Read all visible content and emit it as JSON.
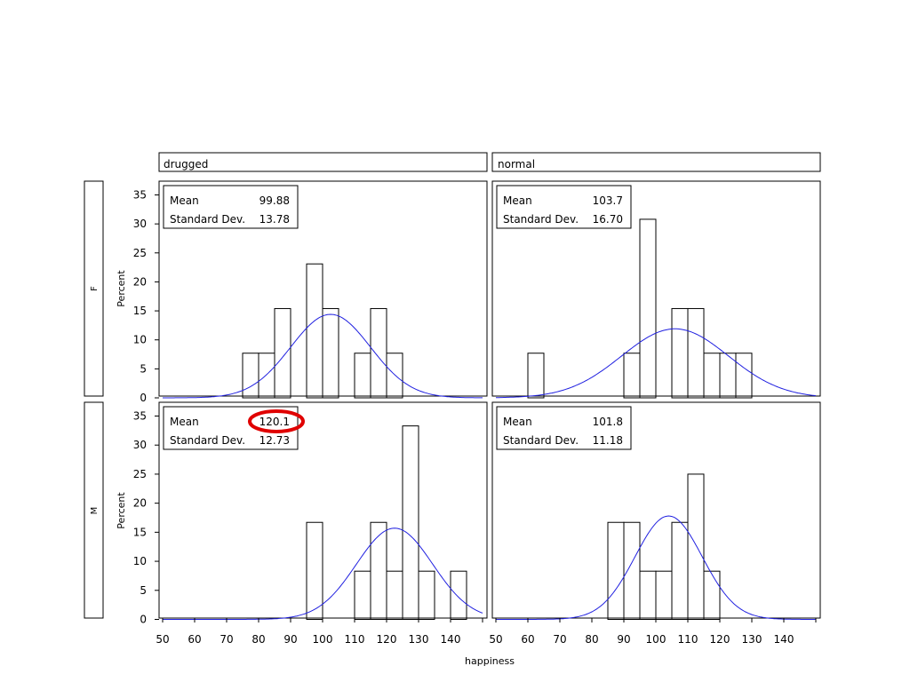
{
  "chart_data": {
    "type": "bar",
    "subtype": "histogram-panel",
    "xlabel": "happiness",
    "ylabel": "Percent",
    "xlim": [
      50,
      150
    ],
    "ylim": [
      0,
      35
    ],
    "bin_width": 5,
    "x_ticks": [
      50,
      60,
      70,
      80,
      90,
      100,
      110,
      120,
      130,
      140
    ],
    "y_ticks": [
      0,
      5,
      10,
      15,
      20,
      25,
      30,
      35
    ],
    "columns": [
      "drugged",
      "normal"
    ],
    "rows": [
      "F",
      "M"
    ],
    "grid": false,
    "stat_labels": {
      "mean": "Mean",
      "sd": "Standard Dev."
    },
    "highlight_color": "#e00000",
    "bar_stroke": "#000000",
    "curve_color": "#2020e0",
    "panels": [
      {
        "row": "F",
        "column": "drugged",
        "mean_text": "99.88",
        "sd_text": "13.78",
        "mean": 99.88,
        "sd": 13.78,
        "highlight": false,
        "bins": [
          {
            "start": 75,
            "value": 7.7
          },
          {
            "start": 80,
            "value": 7.7
          },
          {
            "start": 85,
            "value": 15.4
          },
          {
            "start": 95,
            "value": 23.1
          },
          {
            "start": 100,
            "value": 15.4
          },
          {
            "start": 110,
            "value": 7.7
          },
          {
            "start": 115,
            "value": 15.4
          },
          {
            "start": 120,
            "value": 7.7
          }
        ],
        "curve": {
          "mean": 102.5,
          "sd": 12.5,
          "peak": 14.4
        }
      },
      {
        "row": "F",
        "column": "normal",
        "mean_text": "103.7",
        "sd_text": "16.70",
        "mean": 103.7,
        "sd": 16.7,
        "highlight": false,
        "bins": [
          {
            "start": 60,
            "value": 7.7
          },
          {
            "start": 90,
            "value": 7.7
          },
          {
            "start": 95,
            "value": 30.8
          },
          {
            "start": 105,
            "value": 15.4
          },
          {
            "start": 110,
            "value": 15.4
          },
          {
            "start": 115,
            "value": 7.7
          },
          {
            "start": 120,
            "value": 7.7
          },
          {
            "start": 125,
            "value": 7.7
          }
        ],
        "curve": {
          "mean": 106,
          "sd": 16.7,
          "peak": 11.9
        }
      },
      {
        "row": "M",
        "column": "drugged",
        "mean_text": "120.1",
        "sd_text": "12.73",
        "mean": 120.1,
        "sd": 12.73,
        "highlight": true,
        "bins": [
          {
            "start": 95,
            "value": 16.7
          },
          {
            "start": 110,
            "value": 8.3
          },
          {
            "start": 115,
            "value": 16.7
          },
          {
            "start": 120,
            "value": 8.3
          },
          {
            "start": 125,
            "value": 33.3
          },
          {
            "start": 130,
            "value": 8.3
          },
          {
            "start": 140,
            "value": 8.3
          }
        ],
        "curve": {
          "mean": 122.5,
          "sd": 11.9,
          "peak": 15.7
        }
      },
      {
        "row": "M",
        "column": "normal",
        "mean_text": "101.8",
        "sd_text": "11.18",
        "mean": 101.8,
        "sd": 11.18,
        "highlight": false,
        "bins": [
          {
            "start": 85,
            "value": 16.7
          },
          {
            "start": 90,
            "value": 16.7
          },
          {
            "start": 95,
            "value": 8.3
          },
          {
            "start": 100,
            "value": 8.3
          },
          {
            "start": 105,
            "value": 16.7
          },
          {
            "start": 110,
            "value": 25.0
          },
          {
            "start": 115,
            "value": 8.3
          }
        ],
        "curve": {
          "mean": 104,
          "sd": 10.5,
          "peak": 17.8
        }
      }
    ]
  }
}
